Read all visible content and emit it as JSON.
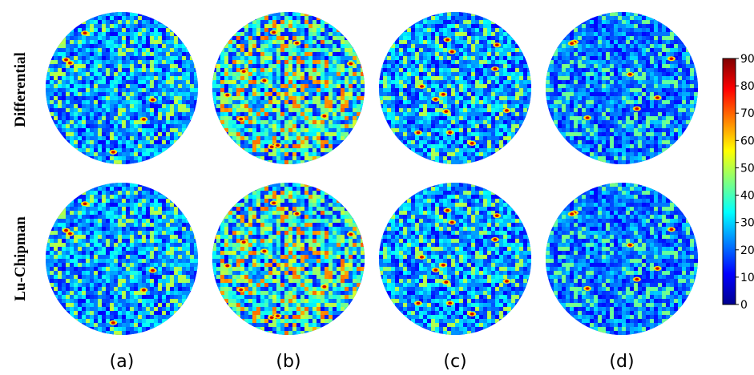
{
  "row_labels": [
    "Differential",
    "Lu-Chipman"
  ],
  "column_labels": [
    "(a)",
    "(b)",
    "(c)",
    "(d)"
  ],
  "colorbar": {
    "min": 0,
    "max": 90,
    "tick_labels": [
      "0",
      "10",
      "20",
      "30",
      "40",
      "50",
      "60",
      "70",
      "80",
      "90"
    ],
    "colormap": "jet"
  },
  "panels": [
    {
      "row": "Differential",
      "column": "(a)",
      "mean_level": 0.25,
      "hotspots": 6,
      "seed": 11
    },
    {
      "row": "Differential",
      "column": "(b)",
      "mean_level": 0.42,
      "hotspots": 10,
      "seed": 23
    },
    {
      "row": "Differential",
      "column": "(c)",
      "mean_level": 0.25,
      "hotspots": 12,
      "seed": 37
    },
    {
      "row": "Differential",
      "column": "(d)",
      "mean_level": 0.2,
      "hotspots": 7,
      "seed": 41
    },
    {
      "row": "Lu-Chipman",
      "column": "(a)",
      "mean_level": 0.25,
      "hotspots": 6,
      "seed": 11
    },
    {
      "row": "Lu-Chipman",
      "column": "(b)",
      "mean_level": 0.42,
      "hotspots": 10,
      "seed": 23
    },
    {
      "row": "Lu-Chipman",
      "column": "(c)",
      "mean_level": 0.25,
      "hotspots": 12,
      "seed": 37
    },
    {
      "row": "Lu-Chipman",
      "column": "(d)",
      "mean_level": 0.2,
      "hotspots": 7,
      "seed": 41
    }
  ]
}
